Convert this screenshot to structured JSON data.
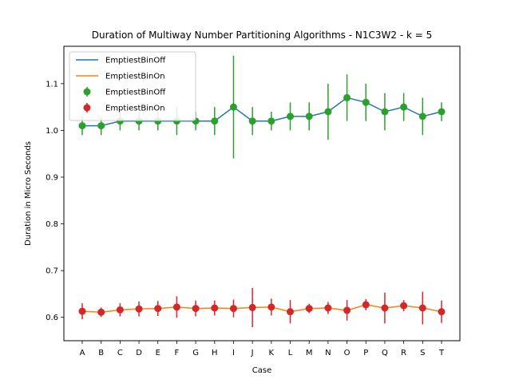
{
  "chart_data": {
    "type": "line",
    "title": "Duration of Multiway Number Partitioning Algorithms - N1C3W2 - k = 5",
    "xlabel": "Case",
    "ylabel": "Duration in Micro Seconds",
    "categories": [
      "A",
      "B",
      "C",
      "D",
      "E",
      "F",
      "G",
      "H",
      "I",
      "J",
      "K",
      "L",
      "M",
      "N",
      "O",
      "P",
      "Q",
      "R",
      "S",
      "T"
    ],
    "ylim": [
      0.55,
      1.18
    ],
    "yticks": [
      0.6,
      0.7,
      0.8,
      0.9,
      1.0,
      1.1
    ],
    "ytick_labels": [
      "0.6",
      "0.7",
      "0.8",
      "0.9",
      "1.0",
      "1.1"
    ],
    "grid": false,
    "legend_position": "upper left",
    "series": [
      {
        "name": "EmptiestBinOff",
        "kind": "line",
        "color": "#1f77b4",
        "values": [
          1.01,
          1.01,
          1.02,
          1.02,
          1.02,
          1.02,
          1.02,
          1.02,
          1.05,
          1.02,
          1.02,
          1.03,
          1.03,
          1.04,
          1.07,
          1.06,
          1.04,
          1.05,
          1.03,
          1.04
        ]
      },
      {
        "name": "EmptiestBinOn",
        "kind": "line",
        "color": "#ff7f0e",
        "values": [
          0.613,
          0.611,
          0.616,
          0.618,
          0.619,
          0.622,
          0.619,
          0.62,
          0.619,
          0.621,
          0.622,
          0.612,
          0.619,
          0.62,
          0.615,
          0.627,
          0.62,
          0.625,
          0.62,
          0.612
        ]
      },
      {
        "name": "EmptiestBinOff",
        "kind": "errorbar",
        "color": "#2ca02c",
        "values": [
          1.01,
          1.01,
          1.02,
          1.02,
          1.02,
          1.02,
          1.02,
          1.02,
          1.05,
          1.02,
          1.02,
          1.03,
          1.03,
          1.04,
          1.07,
          1.06,
          1.04,
          1.05,
          1.03,
          1.04
        ],
        "err": [
          0.02,
          0.02,
          0.02,
          0.02,
          0.02,
          0.03,
          0.02,
          0.03,
          0.11,
          0.03,
          0.02,
          0.03,
          0.03,
          0.06,
          0.05,
          0.04,
          0.04,
          0.03,
          0.04,
          0.02
        ]
      },
      {
        "name": "EmptiestBinOn",
        "kind": "errorbar",
        "color": "#d62728",
        "values": [
          0.613,
          0.611,
          0.616,
          0.618,
          0.619,
          0.622,
          0.619,
          0.62,
          0.619,
          0.621,
          0.622,
          0.612,
          0.619,
          0.62,
          0.615,
          0.627,
          0.62,
          0.625,
          0.62,
          0.612
        ],
        "err": [
          0.017,
          0.01,
          0.014,
          0.016,
          0.016,
          0.023,
          0.017,
          0.016,
          0.019,
          0.042,
          0.018,
          0.025,
          0.01,
          0.013,
          0.022,
          0.012,
          0.033,
          0.012,
          0.035,
          0.024
        ]
      }
    ]
  }
}
